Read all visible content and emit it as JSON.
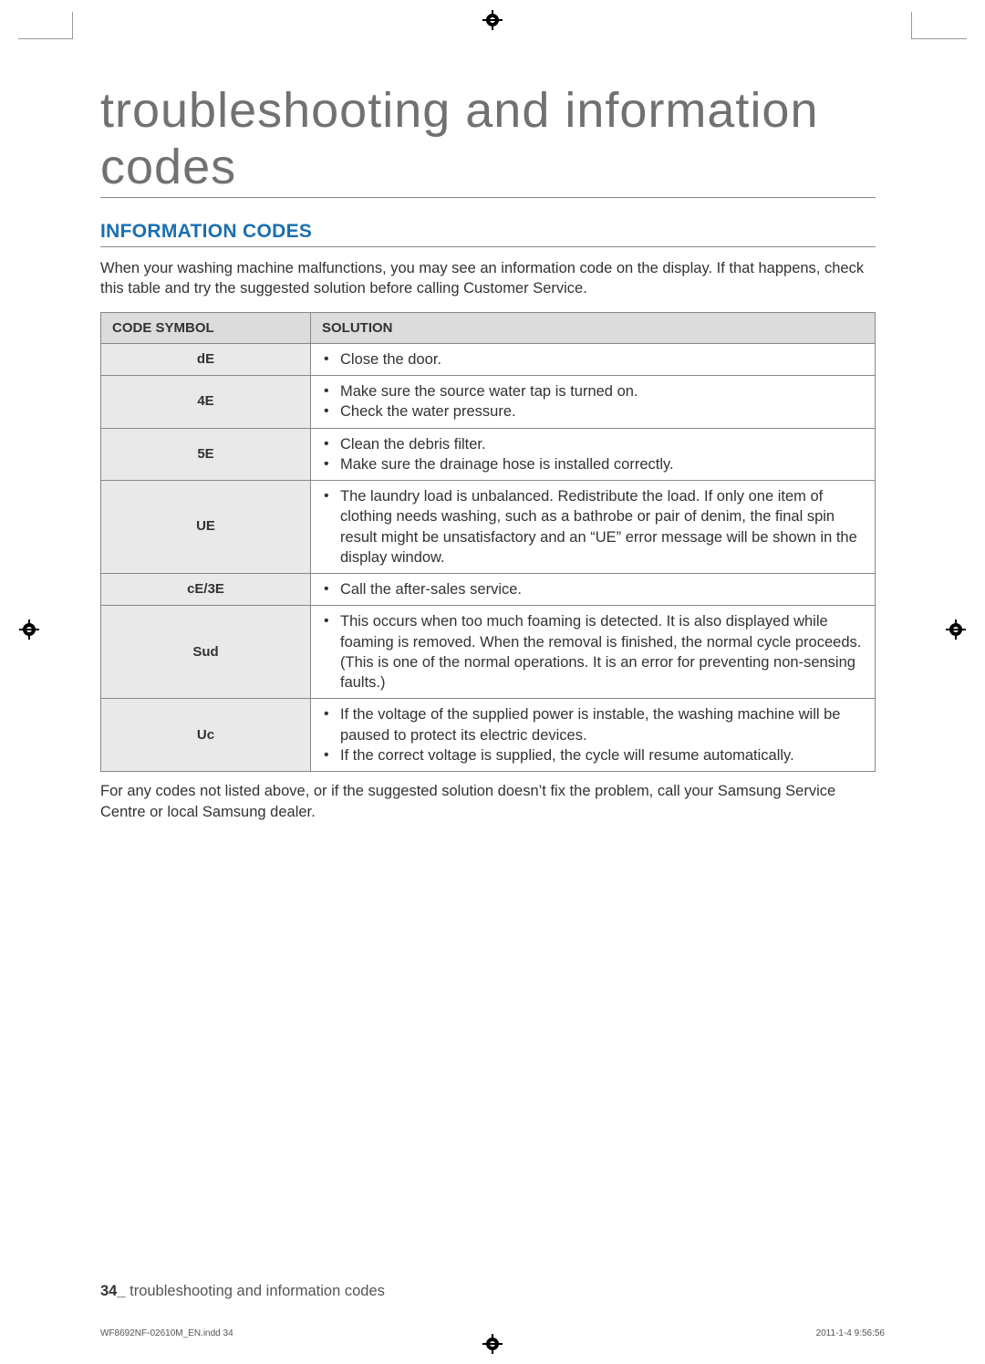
{
  "title": "troubleshooting and information codes",
  "section_heading": "INFORMATION CODES",
  "intro": "When your washing machine malfunctions, you may see an information code on the display. If that happens, check this table and try the suggested solution before calling Customer Service.",
  "table": {
    "headers": [
      "CODE SYMBOL",
      "SOLUTION"
    ],
    "rows": [
      {
        "code": "dE",
        "solutions": [
          "Close the door."
        ]
      },
      {
        "code": "4E",
        "solutions": [
          "Make sure the source water tap is turned on.",
          "Check the water pressure."
        ]
      },
      {
        "code": "5E",
        "solutions": [
          "Clean the debris filter.",
          "Make sure the drainage hose is installed correctly."
        ]
      },
      {
        "code": "UE",
        "solutions": [
          "The laundry load is unbalanced. Redistribute the load. If only one item of clothing needs washing, such as a bathrobe or pair of denim, the final spin result might be unsatisfactory and an “UE” error message will be shown in the display window."
        ]
      },
      {
        "code": "cE/3E",
        "solutions": [
          "Call the after-sales service."
        ]
      },
      {
        "code": "Sud",
        "solutions": [
          "This occurs when too much foaming is detected. It is also displayed while foaming is removed. When the removal is finished, the normal cycle proceeds.(This is one of the normal operations. It is an error for preventing non-sensing faults.)"
        ]
      },
      {
        "code": "Uc",
        "solutions": [
          "If the voltage of the supplied power is instable, the washing machine will be paused to protect its electric devices.",
          "If the correct voltage is supplied, the cycle will resume automatically."
        ]
      }
    ]
  },
  "outro": "For any codes not listed above, or if the suggested solution doesn’t fix the problem, call your Samsung Service Centre or local Samsung dealer.",
  "footer": {
    "page_num": "34_",
    "footer_text": " troubleshooting and information codes"
  },
  "print_info": {
    "left": "WF8692NF-02610M_EN.indd   34",
    "right": "2011-1-4   9:56:56"
  },
  "styling": {
    "title_color": "#717171",
    "heading_color": "#1a6fb0",
    "border_color": "#888888",
    "header_bg": "#dcdcdc",
    "code_cell_bg": "#e9e9e9",
    "text_color": "#333333",
    "title_fontsize": 54,
    "heading_fontsize": 21,
    "body_fontsize": 16.5,
    "table_header_fontsize": 15
  }
}
